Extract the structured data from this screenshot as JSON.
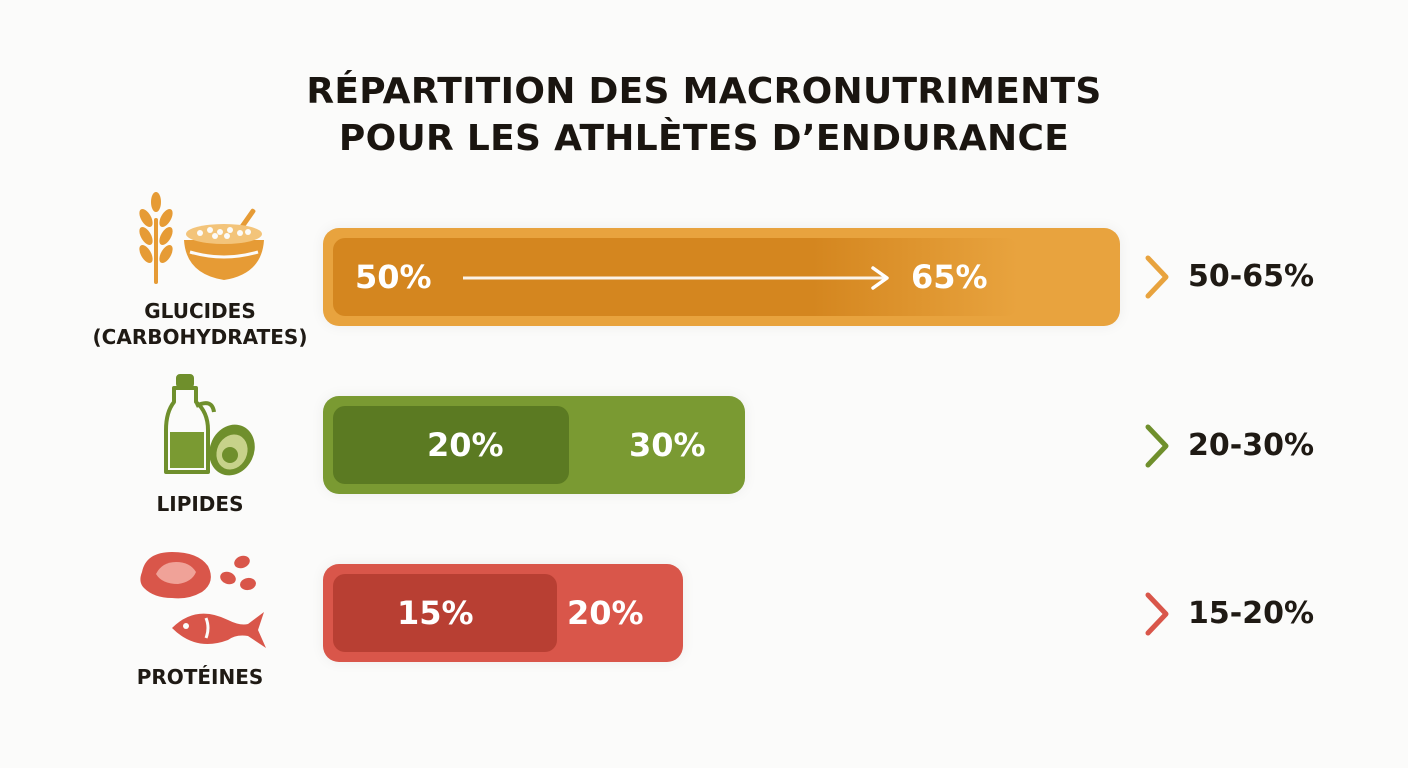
{
  "title_line1": "RÉPARTITION DES MACRONUTRIMENTS",
  "title_line2": "POUR LES ATHLÈTES D’ENDURANCE",
  "chart_data": {
    "type": "bar",
    "title": "RÉPARTITION DES MACRONUTRIMENTS POUR LES ATHLÈTES D’ENDURANCE",
    "categories": [
      "GLUCIDES (CARBOHYDRATES)",
      "LIPIDES",
      "PROTÉINES"
    ],
    "series": [
      {
        "values_min": [
          50,
          20,
          15
        ],
        "values_max": [
          65,
          30,
          20
        ]
      }
    ],
    "rows": [
      {
        "label_line1": "GLUCIDES",
        "label_line2": "(CARBOHYDRATES)",
        "min": 50,
        "max": 65,
        "min_label": "50%",
        "max_label": "65%",
        "range_label": "50-65%",
        "color": "#e8a33e",
        "inner_color": "#d4861f",
        "chevron_color": "#e8a33e",
        "icon": "wheat-and-bowl-icon"
      },
      {
        "label_line1": "LIPIDES",
        "label_line2": "",
        "min": 20,
        "max": 30,
        "min_label": "20%",
        "max_label": "30%",
        "range_label": "20-30%",
        "color": "#7a9a32",
        "inner_color": "#5b7a22",
        "chevron_color": "#6f8f2c",
        "icon": "oil-and-avocado-icon"
      },
      {
        "label_line1": "PROTÉINES",
        "label_line2": "",
        "min": 15,
        "max": 20,
        "min_label": "15%",
        "max_label": "20%",
        "range_label": "15-20%",
        "color": "#d9564a",
        "inner_color": "#b83f33",
        "chevron_color": "#d9564a",
        "icon": "meat-fish-beans-icon"
      }
    ]
  }
}
